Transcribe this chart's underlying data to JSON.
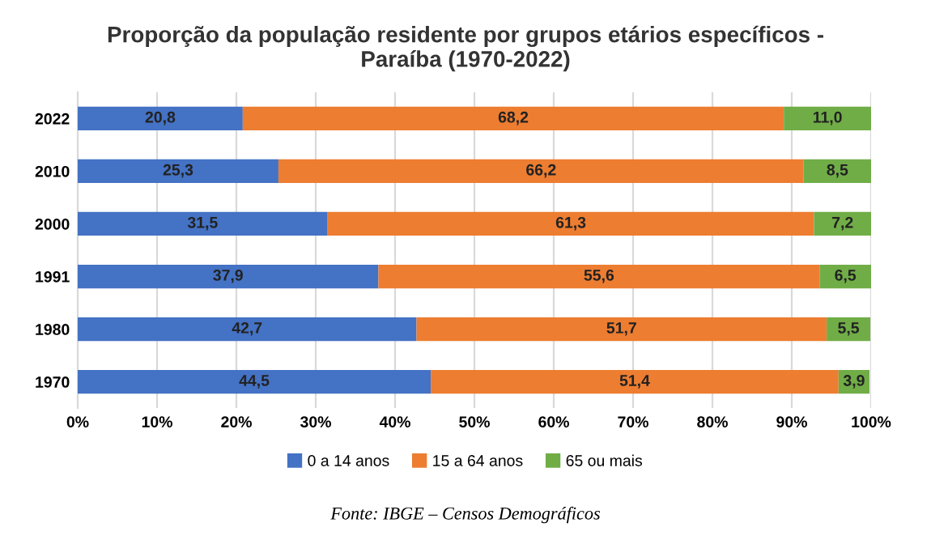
{
  "chart_data": {
    "type": "bar",
    "orientation": "horizontal",
    "stacked": true,
    "title": "Proporção da população residente por grupos etários específicos -\nParaíba (1970-2022)",
    "categories": [
      "2022",
      "2010",
      "2000",
      "1991",
      "1980",
      "1970"
    ],
    "series": [
      {
        "name": "0 a 14 anos",
        "color": "#4472c4",
        "values": [
          20.8,
          25.3,
          31.5,
          37.9,
          42.7,
          44.5
        ],
        "value_labels": [
          "20,8",
          "25,3",
          "31,5",
          "37,9",
          "42,7",
          "44,5"
        ]
      },
      {
        "name": "15 a 64 anos",
        "color": "#ed7d31",
        "values": [
          68.2,
          66.2,
          61.3,
          55.6,
          51.7,
          51.4
        ],
        "value_labels": [
          "68,2",
          "66,2",
          "61,3",
          "55,6",
          "51,7",
          "51,4"
        ]
      },
      {
        "name": "65 ou mais",
        "color": "#70ad47",
        "values": [
          11.0,
          8.5,
          7.2,
          6.5,
          5.5,
          3.9
        ],
        "value_labels": [
          "11,0",
          "8,5",
          "7,2",
          "6,5",
          "5,5",
          "3,9"
        ]
      }
    ],
    "xlim": [
      0,
      100
    ],
    "xticks": [
      {
        "value": 0,
        "label": "0%"
      },
      {
        "value": 10,
        "label": "10%"
      },
      {
        "value": 20,
        "label": "20%"
      },
      {
        "value": 30,
        "label": "30%"
      },
      {
        "value": 40,
        "label": "40%"
      },
      {
        "value": 50,
        "label": "50%"
      },
      {
        "value": 60,
        "label": "60%"
      },
      {
        "value": 70,
        "label": "70%"
      },
      {
        "value": 80,
        "label": "80%"
      },
      {
        "value": 90,
        "label": "90%"
      },
      {
        "value": 100,
        "label": "100%"
      }
    ],
    "grid": "x",
    "legend": "bottom",
    "annotations": [
      "Fonte: IBGE – Censos Demográficos"
    ]
  }
}
